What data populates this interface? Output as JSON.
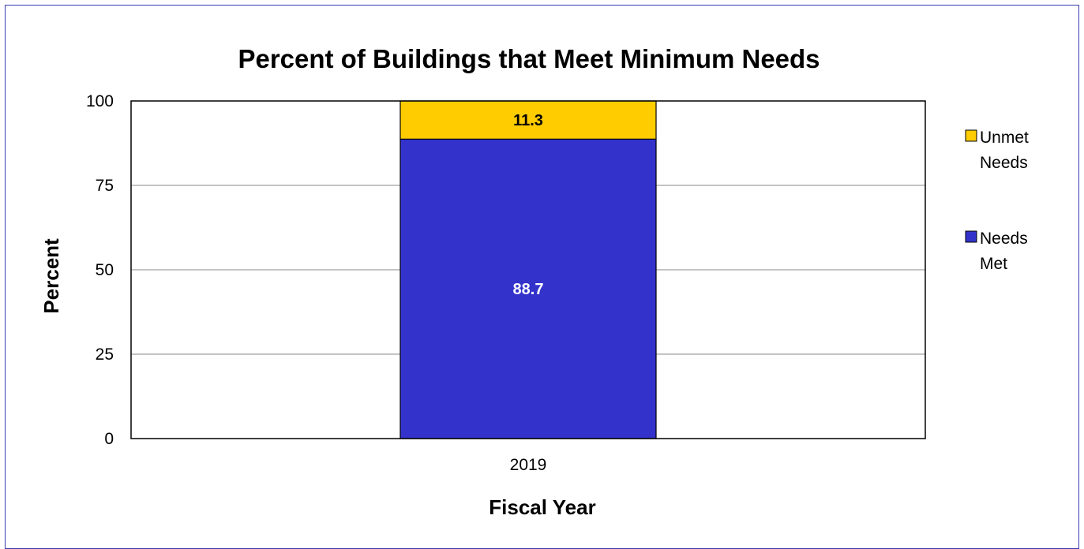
{
  "chart_data": {
    "type": "bar",
    "stacked": true,
    "title": "Percent of Buildings that Meet Minimum Needs",
    "xlabel": "Fiscal Year",
    "ylabel": "Percent",
    "categories": [
      "2019"
    ],
    "ylim": [
      0,
      100
    ],
    "yticks": [
      "0",
      "25",
      "50",
      "75",
      "100"
    ],
    "grid": true,
    "legend_position": "right",
    "series": [
      {
        "name": "Needs Met",
        "values": [
          88.7
        ],
        "color": "#3333cc",
        "label_color": "#ffffff",
        "legend_lines": [
          "Needs",
          "Met"
        ]
      },
      {
        "name": "Unmet Needs",
        "values": [
          11.3
        ],
        "color": "#ffcc00",
        "label_color": "#000000",
        "legend_lines": [
          "Unmet",
          "Needs"
        ]
      }
    ]
  },
  "colors": {
    "frame_border": "#3b3bb0",
    "gridline": "#888888",
    "plot_border": "#000000"
  }
}
